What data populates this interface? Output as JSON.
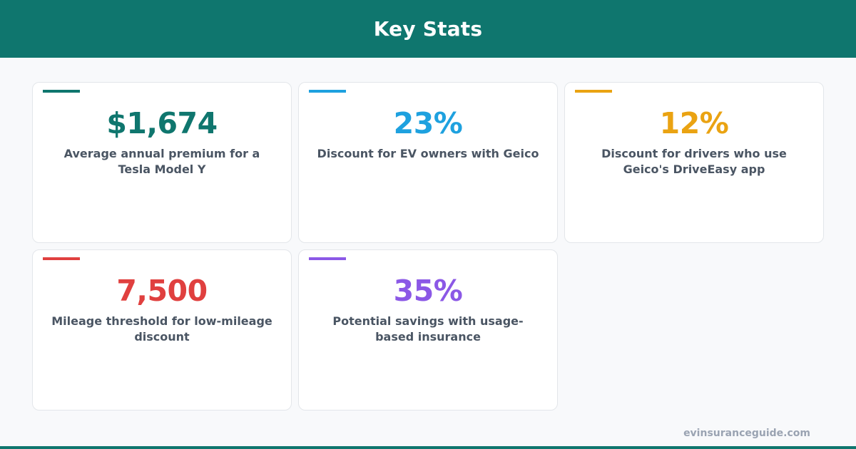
{
  "header": {
    "title": "Key Stats"
  },
  "colors": {
    "brand": "#0f766e",
    "card1": "#0f766e",
    "card2": "#1ea1df",
    "card3": "#eaa312",
    "card4": "#e0403f",
    "card5": "#8b58e6"
  },
  "stats": [
    {
      "value": "$1,674",
      "label": "Average annual premium for a Tesla Model Y"
    },
    {
      "value": "23%",
      "label": "Discount for EV owners with Geico"
    },
    {
      "value": "12%",
      "label": "Discount for drivers who use Geico's DriveEasy app"
    },
    {
      "value": "7,500",
      "label": "Mileage threshold for low-mileage discount"
    },
    {
      "value": "35%",
      "label": "Potential savings with usage-based insurance"
    }
  ],
  "footer": {
    "site": "evinsuranceguide.com"
  }
}
